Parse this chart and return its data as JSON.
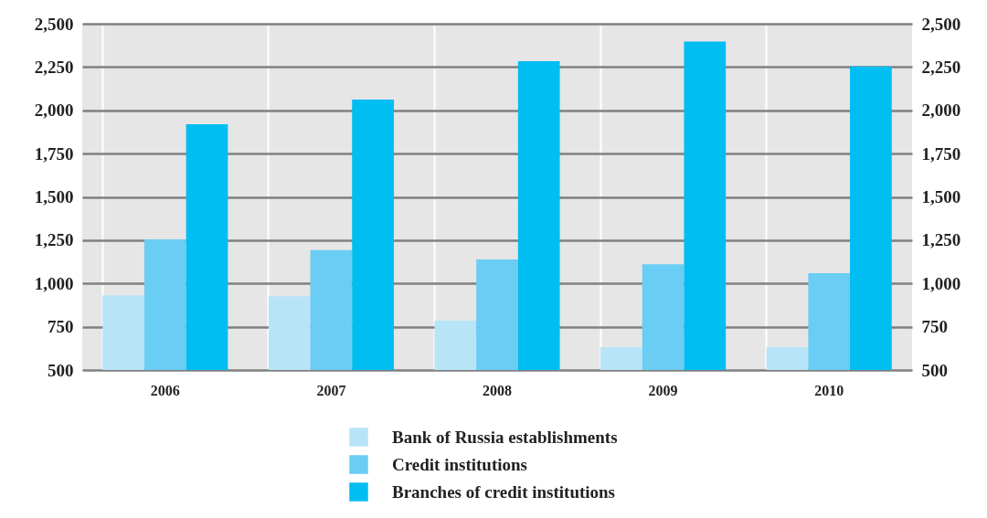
{
  "chart_data": {
    "type": "bar",
    "categories": [
      "2006",
      "2007",
      "2008",
      "2009",
      "2010"
    ],
    "series": [
      {
        "name": "Bank of Russia establishments",
        "color": "#b8e4f8",
        "values": [
          932,
          926,
          785,
          632,
          632
        ]
      },
      {
        "name": "Credit institutions",
        "color": "#6acdf4",
        "values": [
          1254,
          1192,
          1139,
          1111,
          1060
        ]
      },
      {
        "name": "Branches of credit institutions",
        "color": "#00bdf2",
        "values": [
          1920,
          2062,
          2284,
          2397,
          2253
        ]
      }
    ],
    "ylim": [
      500,
      2500
    ],
    "yticks": [
      {
        "value": 500,
        "label": "500"
      },
      {
        "value": 750,
        "label": "750"
      },
      {
        "value": 1000,
        "label": "1,000"
      },
      {
        "value": 1250,
        "label": "1,250"
      },
      {
        "value": 1500,
        "label": "1,500"
      },
      {
        "value": 1750,
        "label": "1,750"
      },
      {
        "value": 2000,
        "label": "2,000"
      },
      {
        "value": 2250,
        "label": "2,250"
      },
      {
        "value": 2500,
        "label": "2,500"
      }
    ],
    "y2lim": [
      500,
      2500
    ],
    "y2ticks": [
      {
        "value": 500,
        "label": "500"
      },
      {
        "value": 750,
        "label": "750"
      },
      {
        "value": 1000,
        "label": "1,000"
      },
      {
        "value": 1250,
        "label": "1,250"
      },
      {
        "value": 1500,
        "label": "1,500"
      },
      {
        "value": 1750,
        "label": "1,750"
      },
      {
        "value": 2000,
        "label": "2,000"
      },
      {
        "value": 2250,
        "label": "2,250"
      },
      {
        "value": 2500,
        "label": "2,500"
      }
    ],
    "grid": "y",
    "legend": "bottom"
  }
}
